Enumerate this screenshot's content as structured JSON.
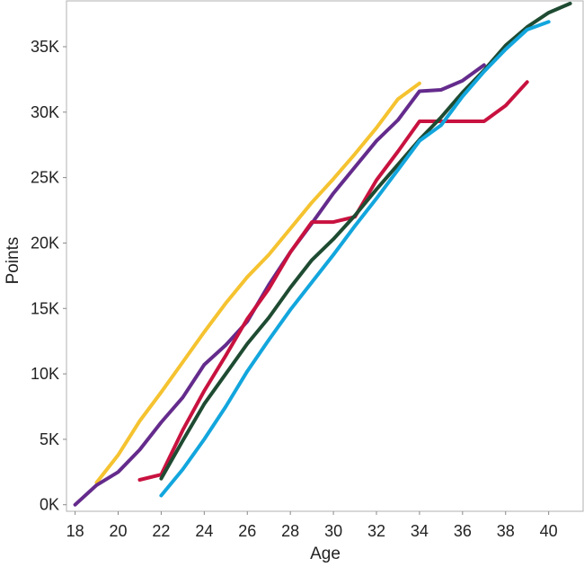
{
  "chart_data": {
    "type": "line",
    "title": "",
    "xlabel": "Age",
    "ylabel": "Points",
    "xlim": [
      17.6,
      41.6
    ],
    "ylim": [
      -500,
      38500
    ],
    "x_ticks": [
      18,
      20,
      22,
      24,
      26,
      28,
      30,
      32,
      34,
      36,
      38,
      40
    ],
    "y_ticks": [
      {
        "value": 0,
        "label": "0K"
      },
      {
        "value": 5000,
        "label": "5K"
      },
      {
        "value": 10000,
        "label": "10K"
      },
      {
        "value": 15000,
        "label": "15K"
      },
      {
        "value": 20000,
        "label": "20K"
      },
      {
        "value": 25000,
        "label": "25K"
      },
      {
        "value": 30000,
        "label": "30K"
      },
      {
        "value": 35000,
        "label": "35K"
      }
    ],
    "grid": false,
    "legend": "none",
    "series": [
      {
        "color": "#F5C330",
        "x": [
          19,
          20,
          21,
          22,
          23,
          24,
          25,
          26,
          27,
          28,
          29,
          30,
          31,
          32,
          33,
          34
        ],
        "y": [
          1700,
          3800,
          6400,
          8600,
          10900,
          13200,
          15400,
          17400,
          19100,
          21100,
          23100,
          24900,
          26800,
          28800,
          31000,
          32200
        ]
      },
      {
        "color": "#642B8C",
        "x": [
          18,
          19,
          20,
          21,
          22,
          23,
          24,
          25,
          26,
          27,
          28,
          29,
          30,
          31,
          32,
          33,
          34,
          35,
          36,
          37
        ],
        "y": [
          0,
          1500,
          2500,
          4200,
          6300,
          8200,
          10700,
          12200,
          14000,
          16800,
          19300,
          21500,
          23800,
          25800,
          27800,
          29400,
          31600,
          31700,
          32400,
          33600
        ]
      },
      {
        "color": "#C8123F",
        "x": [
          21,
          22,
          23,
          24,
          25,
          26,
          27,
          28,
          29,
          30,
          31,
          32,
          33,
          34,
          35,
          36,
          37,
          38,
          39
        ],
        "y": [
          1900,
          2300,
          5700,
          8700,
          11400,
          14200,
          16500,
          19300,
          21600,
          21600,
          22000,
          24800,
          27000,
          29300,
          29300,
          29300,
          29300,
          30500,
          32300
        ]
      },
      {
        "color": "#1E4B32",
        "x": [
          22,
          23,
          24,
          25,
          26,
          27,
          28,
          29,
          30,
          31,
          32,
          33,
          34,
          35,
          36,
          37,
          38,
          39,
          40,
          41
        ],
        "y": [
          2000,
          4900,
          7700,
          10000,
          12300,
          14300,
          16600,
          18700,
          20300,
          22100,
          24100,
          26000,
          27900,
          29600,
          31500,
          33200,
          35100,
          36500,
          37600,
          38300
        ]
      },
      {
        "color": "#12A6DD",
        "x": [
          22,
          23,
          24,
          25,
          26,
          27,
          28,
          29,
          30,
          31,
          32,
          33,
          34,
          35,
          36,
          37,
          38,
          39,
          40
        ],
        "y": [
          700,
          2700,
          5000,
          7500,
          10200,
          12600,
          14900,
          17000,
          19100,
          21300,
          23400,
          25600,
          27800,
          29000,
          31200,
          33100,
          34800,
          36300,
          36900
        ]
      }
    ]
  }
}
